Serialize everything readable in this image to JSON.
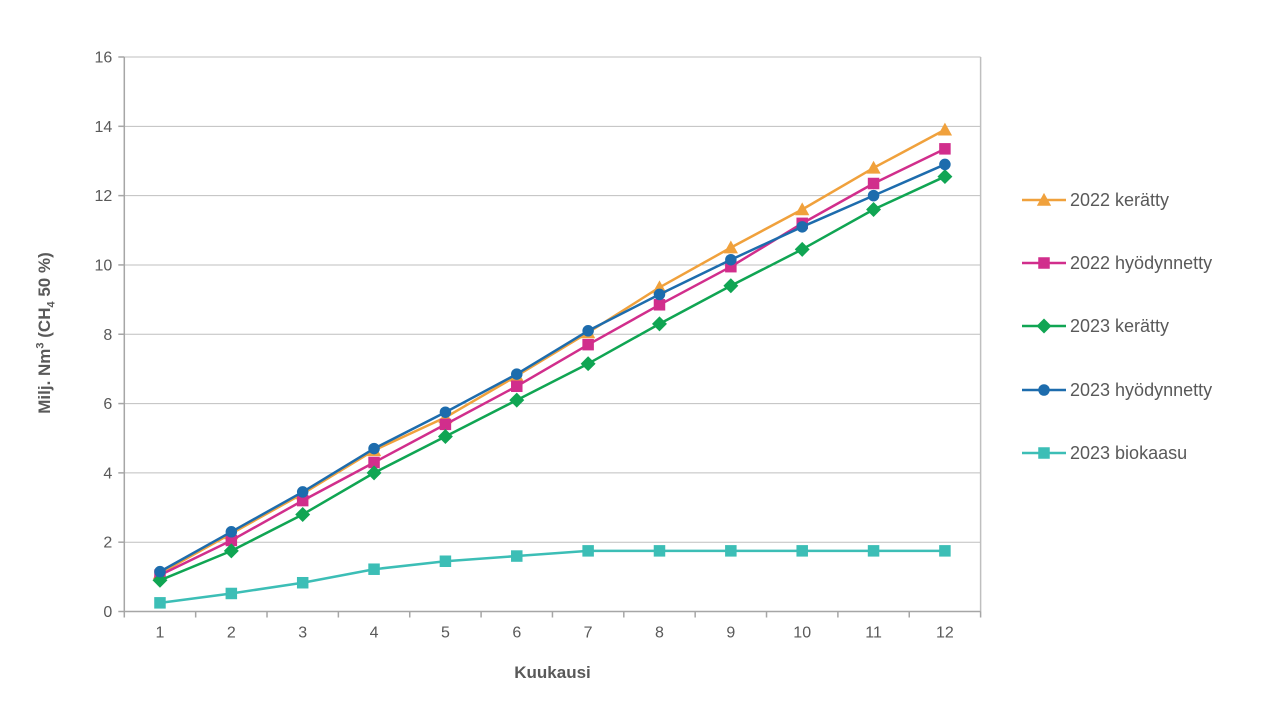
{
  "chart_data": {
    "type": "line",
    "xlabel": "Kuukausi",
    "ylabel": "Milj. Nm³ (CH₄ 50 %)",
    "ylabel_rich": [
      {
        "t": "Milj. Nm"
      },
      {
        "t": "3",
        "v": "sup"
      },
      {
        "t": " (CH"
      },
      {
        "t": "4",
        "v": "sub"
      },
      {
        "t": " 50 %)"
      }
    ],
    "x": [
      1,
      2,
      3,
      4,
      5,
      6,
      7,
      8,
      9,
      10,
      11,
      12
    ],
    "ylim": [
      0,
      16
    ],
    "yticks": [
      0,
      2,
      4,
      6,
      8,
      10,
      12,
      14,
      16
    ],
    "grid": true,
    "legend_position": "right",
    "series": [
      {
        "id": "2022-keratty",
        "name": "2022 kerätty",
        "color": "#F0A13C",
        "marker": "triangle",
        "values": [
          1.1,
          2.25,
          3.4,
          4.65,
          5.6,
          6.8,
          8.05,
          9.35,
          10.5,
          11.6,
          12.8,
          13.9
        ]
      },
      {
        "id": "2022-hyodynnetty",
        "name": "2022 hyödynnetty",
        "color": "#D12E8C",
        "marker": "square",
        "values": [
          1.05,
          2.05,
          3.2,
          4.3,
          5.4,
          6.5,
          7.7,
          8.85,
          9.95,
          11.2,
          12.35,
          13.35
        ]
      },
      {
        "id": "2023-keratty",
        "name": "2023 kerätty",
        "color": "#10A553",
        "marker": "diamond",
        "values": [
          0.9,
          1.75,
          2.8,
          4.0,
          5.05,
          6.1,
          7.15,
          8.3,
          9.4,
          10.45,
          11.6,
          12.55
        ]
      },
      {
        "id": "2023-hyodynnetty",
        "name": "2023 hyödynnetty",
        "color": "#1D6CAD",
        "marker": "circle",
        "values": [
          1.15,
          2.3,
          3.45,
          4.7,
          5.75,
          6.85,
          8.1,
          9.15,
          10.15,
          11.1,
          12.0,
          12.9
        ]
      },
      {
        "id": "2023-biokaasu",
        "name": "2023 biokaasu",
        "color": "#3CBEB6",
        "marker": "square",
        "values": [
          0.25,
          0.52,
          0.83,
          1.22,
          1.45,
          1.6,
          1.75,
          1.75,
          1.75,
          1.75,
          1.75,
          1.75
        ]
      }
    ]
  },
  "legend": {
    "items": [
      {
        "label": "2022 kerätty"
      },
      {
        "label": "2022 hyödynnetty"
      },
      {
        "label": "2023 kerätty"
      },
      {
        "label": "2023 hyödynnetty"
      },
      {
        "label": "2023 biokaasu"
      }
    ]
  },
  "colors": {
    "gridline": "#BFBFBF",
    "axis": "#A6A6A6",
    "text": "#595959",
    "background": "#FFFFFF"
  }
}
